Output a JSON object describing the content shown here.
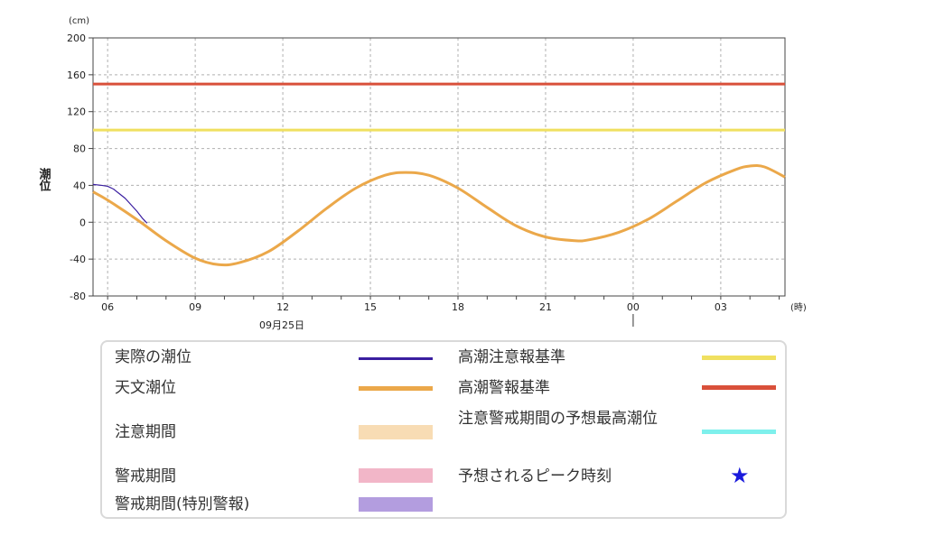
{
  "chart_data": {
    "type": "line",
    "y_unit": "(cm)",
    "x_unit": "(時)",
    "ylabel": "潮位",
    "ylim": [
      -80,
      200
    ],
    "yticks": [
      200,
      160,
      120,
      80,
      40,
      0,
      -40,
      -80
    ],
    "x_range_hours": [
      5.5,
      29.2
    ],
    "xticks": [
      {
        "hour": 6,
        "label": "06"
      },
      {
        "hour": 9,
        "label": "09"
      },
      {
        "hour": 12,
        "label": "12"
      },
      {
        "hour": 15,
        "label": "15"
      },
      {
        "hour": 18,
        "label": "18"
      },
      {
        "hour": 21,
        "label": "21"
      },
      {
        "hour": 24,
        "label": "00"
      },
      {
        "hour": 27,
        "label": "03"
      }
    ],
    "date_label": "09月25日",
    "grid": true,
    "series": [
      {
        "name": "実際の潮位",
        "color": "#3a1ea0",
        "x": [
          5.5,
          5.8,
          6.0,
          6.2,
          6.4,
          6.6,
          6.8,
          7.0,
          7.2,
          7.35
        ],
        "y": [
          41,
          40,
          39,
          36,
          31,
          26,
          19,
          12,
          4,
          -1
        ]
      },
      {
        "name": "天文潮位",
        "color": "#eba84a",
        "x": [
          5.5,
          6,
          7,
          8,
          9,
          9.8,
          10.5,
          11.5,
          12.5,
          13.5,
          14.5,
          15.5,
          16.2,
          17,
          18,
          19,
          20,
          21,
          22,
          22.5,
          23.5,
          24.5,
          25.5,
          26.5,
          27.5,
          28,
          28.5,
          29.2
        ],
        "y": [
          33,
          24,
          3,
          -20,
          -39,
          -46,
          -44,
          -32,
          -10,
          15,
          37,
          51,
          54,
          51,
          37,
          16,
          -4,
          -16,
          -20,
          -19,
          -11,
          3,
          23,
          43,
          57,
          61,
          60,
          49
        ]
      },
      {
        "name": "高潮注意報基準",
        "color": "#f0e060",
        "x": [
          5.5,
          29.2
        ],
        "y": [
          100,
          100
        ]
      },
      {
        "name": "高潮警報基準",
        "color": "#d9503a",
        "x": [
          5.5,
          29.2
        ],
        "y": [
          150,
          150
        ]
      }
    ]
  },
  "legend": {
    "left": [
      {
        "label": "実際の潮位",
        "kind": "thin",
        "color": "#3a1ea0"
      },
      {
        "label": "天文潮位",
        "kind": "thick",
        "color": "#eba84a"
      },
      {
        "label": "注意期間",
        "kind": "block",
        "color": "#f8dcb4"
      },
      {
        "label": "警戒期間",
        "kind": "block",
        "color": "#f2b6c8"
      },
      {
        "label": "警戒期間(特別警報)",
        "kind": "block",
        "color": "#b39ddf"
      }
    ],
    "right": [
      {
        "label": "高潮注意報基準",
        "kind": "thick",
        "color": "#f0e060"
      },
      {
        "label": "高潮警報基準",
        "kind": "thick",
        "color": "#d9503a"
      },
      {
        "label": "注意警戒期間の予想最高潮位",
        "kind": "thick",
        "color": "#7ef0ec"
      },
      {
        "label": "予想されるピーク時刻",
        "kind": "star",
        "color": "#1a1adc",
        "symbol": "★"
      }
    ]
  }
}
